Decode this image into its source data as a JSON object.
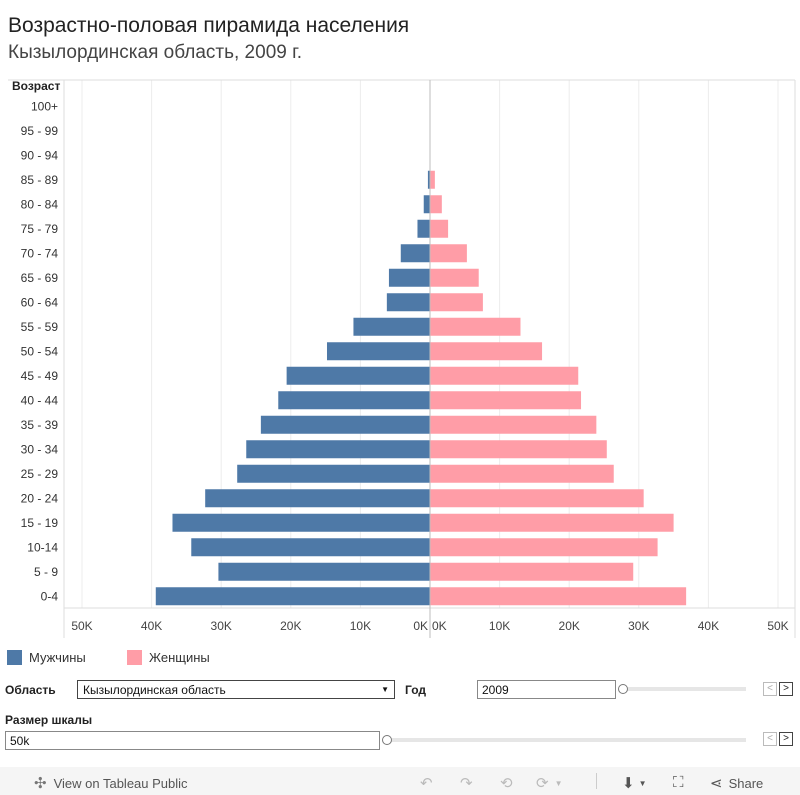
{
  "header": {
    "title": "Возрастно-половая пирамида населения",
    "subtitle": "Кызылординская область, 2009 г."
  },
  "chart_data": {
    "type": "bar",
    "orientation": "horizontal-pyramid",
    "y_axis_title": "Возраст",
    "categories": [
      "100+",
      "95 - 99",
      "90 - 94",
      "85 - 89",
      "80 - 84",
      "75 - 79",
      "70 - 74",
      "65 - 69",
      "60 - 64",
      "55 - 59",
      "50 - 54",
      "45 - 49",
      "40 - 44",
      "35 - 39",
      "30 - 34",
      "25 - 29",
      "20 - 24",
      "15 - 19",
      "10-14",
      "5 - 9",
      "0-4"
    ],
    "series": [
      {
        "name": "Мужчины",
        "color": "#4e79a7",
        "side": "left",
        "values": [
          0,
          0,
          0,
          300,
          900,
          1800,
          4200,
          5900,
          6200,
          11000,
          14800,
          20600,
          21800,
          24300,
          26400,
          27700,
          32300,
          37000,
          34300,
          30400,
          39400
        ]
      },
      {
        "name": "Женщины",
        "color": "#ff9da7",
        "side": "right",
        "values": [
          0,
          0,
          0,
          700,
          1700,
          2600,
          5300,
          7000,
          7600,
          13000,
          16100,
          21300,
          21700,
          23900,
          25400,
          26400,
          30700,
          35000,
          32700,
          29200,
          36800
        ]
      }
    ],
    "x_ticks_left": [
      "50K",
      "40K",
      "30K",
      "20K",
      "10K",
      "0K"
    ],
    "x_ticks_right": [
      "0K",
      "10K",
      "20K",
      "30K",
      "40K",
      "50K"
    ],
    "xlim": [
      0,
      50000
    ],
    "grid": true
  },
  "legend": {
    "male_label": "Мужчины",
    "female_label": "Женщины",
    "male_color": "#4e79a7",
    "female_color": "#ff9da7"
  },
  "controls": {
    "region_label": "Область",
    "region_value": "Кызылординская область",
    "year_label": "Год",
    "year_value": "2009",
    "scale_label": "Размер шкалы",
    "scale_value": "50k"
  },
  "footer": {
    "view_label": "View on Tableau Public",
    "share_label": "Share"
  }
}
